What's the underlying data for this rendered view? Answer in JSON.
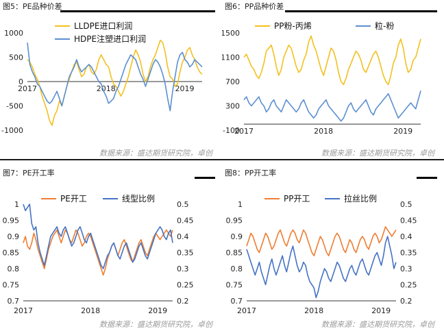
{
  "panels": [
    {
      "id": "p5",
      "title": "图5：PE品种价差",
      "source": "数据来源：盛达期货研究院，卓创",
      "colors": {
        "s1": "#F2C01E",
        "s2": "#5B8FD0"
      },
      "chart_data": {
        "type": "line",
        "title": "",
        "xlabel": "",
        "ylabel": "",
        "x_ticks": [
          "2017",
          "2018",
          "2019"
        ],
        "ylim": [
          -1000,
          1000
        ],
        "y_ticks": [
          -1000,
          -500,
          0,
          500,
          1000
        ],
        "legend": "top-center",
        "grid": false,
        "series": [
          {
            "name": "LLDPE进口利润",
            "color": "#F2C01E",
            "values": [
              450,
              400,
              300,
              150,
              50,
              -100,
              -300,
              -450,
              -600,
              -800,
              -900,
              -700,
              -600,
              -400,
              -500,
              -300,
              -100,
              50,
              200,
              350,
              400,
              250,
              100,
              150,
              300,
              350,
              200,
              150,
              250,
              450,
              550,
              450,
              350,
              300,
              100,
              -50,
              -100,
              -200,
              -300,
              -200,
              -50,
              100,
              300,
              500,
              650,
              550,
              400,
              150,
              0,
              100,
              300,
              450,
              550,
              700,
              850,
              800,
              600,
              300,
              100,
              50,
              -100,
              -50,
              200,
              400,
              500,
              650,
              700,
              550,
              450,
              300,
              200,
              150
            ]
          },
          {
            "name": "HDPE注塑进口利润",
            "color": "#5B8FD0",
            "values": [
              800,
              350,
              200,
              100,
              -50,
              -100,
              -200,
              -300,
              -400,
              -450,
              -400,
              -300,
              -200,
              -350,
              -500,
              -300,
              -100,
              100,
              200,
              300,
              450,
              300,
              200,
              250,
              300,
              350,
              300,
              200,
              100,
              0,
              -50,
              -200,
              -300,
              -450,
              -400,
              -350,
              -200,
              -100,
              50,
              200,
              350,
              450,
              550,
              500,
              450,
              300,
              150,
              50,
              -100,
              50,
              200,
              350,
              450,
              400,
              300,
              150,
              -50,
              -350,
              -600,
              -200,
              100,
              400,
              550,
              600,
              450,
              400,
              300,
              350,
              450,
              400,
              350,
              300
            ]
          }
        ]
      }
    },
    {
      "id": "p6",
      "title": "图6：PP品种价差",
      "source": "数据来源：盛达期货研究院，卓创",
      "colors": {
        "s1": "#F2C01E",
        "s2": "#5B8FD0"
      },
      "chart_data": {
        "type": "line",
        "title": "",
        "xlabel": "",
        "ylabel": "",
        "x_ticks": [
          "2017",
          "2018",
          "2019"
        ],
        "ylim": [
          -100,
          1500
        ],
        "y_ticks": [
          -100,
          300,
          700,
          1100,
          1500
        ],
        "legend": "top-center",
        "grid": false,
        "series": [
          {
            "name": "PP粉-丙烯",
            "color": "#F2C01E",
            "values": [
              1100,
              1150,
              1050,
              950,
              900,
              800,
              750,
              850,
              1000,
              1200,
              1250,
              1300,
              1150,
              950,
              800,
              900,
              1100,
              1200,
              1300,
              1250,
              1100,
              950,
              850,
              900,
              1050,
              1150,
              1350,
              1450,
              1300,
              1200,
              1050,
              900,
              800,
              950,
              1100,
              1250,
              1200,
              1050,
              850,
              700,
              650,
              750,
              900,
              1000,
              1100,
              1200,
              1150,
              1050,
              900,
              850,
              950,
              1050,
              1150,
              1200,
              1100,
              950,
              800,
              700,
              650,
              800,
              1000,
              1100,
              1300,
              1400,
              1250,
              1000,
              850,
              900,
              1050,
              1100,
              1250,
              1400
            ]
          },
          {
            "name": "粒-粉",
            "color": "#5B8FD0",
            "values": [
              400,
              450,
              350,
              300,
              350,
              400,
              450,
              350,
              300,
              200,
              250,
              350,
              400,
              300,
              250,
              200,
              300,
              400,
              350,
              300,
              250,
              200,
              250,
              350,
              400,
              300,
              200,
              150,
              100,
              150,
              250,
              300,
              350,
              400,
              300,
              250,
              200,
              150,
              100,
              50,
              100,
              200,
              300,
              350,
              250,
              200,
              250,
              300,
              350,
              400,
              300,
              200,
              150,
              250,
              300,
              350,
              400,
              450,
              500,
              400,
              300,
              200,
              100,
              150,
              200,
              250,
              300,
              350,
              300,
              250,
              400,
              550
            ]
          }
        ]
      }
    },
    {
      "id": "p7",
      "title": "图7：PE开工率",
      "source": "数据来源：盛达期货研究院，卓创",
      "colors": {
        "s1": "#ED7D31",
        "s2": "#4472C4"
      },
      "chart_data": {
        "type": "line",
        "title": "",
        "xlabel": "",
        "ylabel": "",
        "x_ticks": [
          "2017",
          "2018",
          "2019"
        ],
        "ylim": [
          0.7,
          1
        ],
        "y_ticks": [
          0.7,
          0.75,
          0.8,
          0.85,
          0.9,
          0.95,
          1
        ],
        "y2lim": [
          0.2,
          0.5
        ],
        "y2_ticks": [
          0.2,
          0.25,
          0.3,
          0.35,
          0.4,
          0.45,
          0.5
        ],
        "legend": "top-center",
        "grid": false,
        "series": [
          {
            "name": "PE开工",
            "color": "#ED7D31",
            "axis": "left",
            "values": [
              0.88,
              0.9,
              0.87,
              0.86,
              0.88,
              0.91,
              0.89,
              0.86,
              0.84,
              0.82,
              0.8,
              0.83,
              0.86,
              0.88,
              0.9,
              0.91,
              0.92,
              0.9,
              0.88,
              0.9,
              0.92,
              0.91,
              0.89,
              0.88,
              0.9,
              0.92,
              0.91,
              0.89,
              0.87,
              0.88,
              0.9,
              0.91,
              0.9,
              0.88,
              0.86,
              0.84,
              0.82,
              0.8,
              0.78,
              0.8,
              0.83,
              0.85,
              0.87,
              0.88,
              0.86,
              0.84,
              0.86,
              0.88,
              0.89,
              0.87,
              0.85,
              0.83,
              0.82,
              0.84,
              0.86,
              0.88,
              0.89,
              0.87,
              0.85,
              0.84,
              0.86,
              0.88,
              0.9,
              0.91,
              0.9,
              0.89,
              0.9,
              0.91,
              0.92,
              0.91,
              0.9,
              0.92
            ]
          },
          {
            "name": "线型比例",
            "color": "#4472C4",
            "axis": "right",
            "values": [
              0.5,
              0.48,
              0.49,
              0.5,
              0.44,
              0.42,
              0.43,
              0.38,
              0.35,
              0.33,
              0.31,
              0.34,
              0.37,
              0.4,
              0.41,
              0.42,
              0.43,
              0.41,
              0.4,
              0.42,
              0.43,
              0.41,
              0.39,
              0.37,
              0.38,
              0.4,
              0.42,
              0.43,
              0.41,
              0.39,
              0.38,
              0.4,
              0.41,
              0.39,
              0.37,
              0.35,
              0.33,
              0.31,
              0.3,
              0.32,
              0.34,
              0.35,
              0.37,
              0.38,
              0.36,
              0.34,
              0.33,
              0.35,
              0.37,
              0.38,
              0.36,
              0.34,
              0.32,
              0.33,
              0.35,
              0.37,
              0.38,
              0.36,
              0.34,
              0.33,
              0.35,
              0.37,
              0.39,
              0.41,
              0.42,
              0.43,
              0.42,
              0.4,
              0.39,
              0.41,
              0.42,
              0.38
            ]
          }
        ]
      }
    },
    {
      "id": "p8",
      "title": "图8：PP开工率",
      "source": "数据来源：盛达期货研究院，卓创",
      "colors": {
        "s1": "#ED7D31",
        "s2": "#4472C4"
      },
      "chart_data": {
        "type": "line",
        "title": "",
        "xlabel": "",
        "ylabel": "",
        "x_ticks": [
          "2017",
          "2018",
          "2019"
        ],
        "ylim": [
          0.7,
          1
        ],
        "y_ticks": [
          0.7,
          0.75,
          0.8,
          0.85,
          0.9,
          0.95,
          1
        ],
        "y2lim": [
          0.2,
          0.5
        ],
        "y2_ticks": [
          0.2,
          0.25,
          0.3,
          0.35,
          0.4,
          0.45,
          0.5
        ],
        "legend": "top-center",
        "grid": false,
        "series": [
          {
            "name": "PP开工",
            "color": "#ED7D31",
            "axis": "left",
            "values": [
              0.87,
              0.89,
              0.91,
              0.9,
              0.88,
              0.86,
              0.85,
              0.87,
              0.89,
              0.91,
              0.9,
              0.88,
              0.86,
              0.87,
              0.89,
              0.91,
              0.92,
              0.9,
              0.88,
              0.87,
              0.89,
              0.91,
              0.92,
              0.91,
              0.89,
              0.88,
              0.9,
              0.92,
              0.91,
              0.89,
              0.87,
              0.85,
              0.84,
              0.86,
              0.88,
              0.9,
              0.89,
              0.87,
              0.85,
              0.84,
              0.86,
              0.88,
              0.9,
              0.91,
              0.9,
              0.88,
              0.86,
              0.85,
              0.87,
              0.89,
              0.88,
              0.86,
              0.85,
              0.87,
              0.89,
              0.9,
              0.89,
              0.87,
              0.86,
              0.88,
              0.9,
              0.91,
              0.9,
              0.88,
              0.89,
              0.91,
              0.93,
              0.92,
              0.91,
              0.9,
              0.91,
              0.92
            ]
          },
          {
            "name": "拉丝比例",
            "color": "#4472C4",
            "axis": "right",
            "values": [
              0.36,
              0.34,
              0.32,
              0.3,
              0.28,
              0.3,
              0.32,
              0.29,
              0.27,
              0.25,
              0.28,
              0.31,
              0.33,
              0.3,
              0.28,
              0.3,
              0.32,
              0.34,
              0.31,
              0.29,
              0.32,
              0.35,
              0.37,
              0.34,
              0.31,
              0.29,
              0.3,
              0.32,
              0.31,
              0.28,
              0.26,
              0.25,
              0.24,
              0.21,
              0.23,
              0.26,
              0.28,
              0.3,
              0.29,
              0.27,
              0.26,
              0.28,
              0.3,
              0.32,
              0.31,
              0.29,
              0.27,
              0.26,
              0.28,
              0.3,
              0.31,
              0.29,
              0.28,
              0.3,
              0.32,
              0.33,
              0.31,
              0.29,
              0.28,
              0.3,
              0.32,
              0.34,
              0.35,
              0.33,
              0.31,
              0.34,
              0.38,
              0.4,
              0.37,
              0.34,
              0.3,
              0.32
            ]
          }
        ]
      }
    }
  ]
}
